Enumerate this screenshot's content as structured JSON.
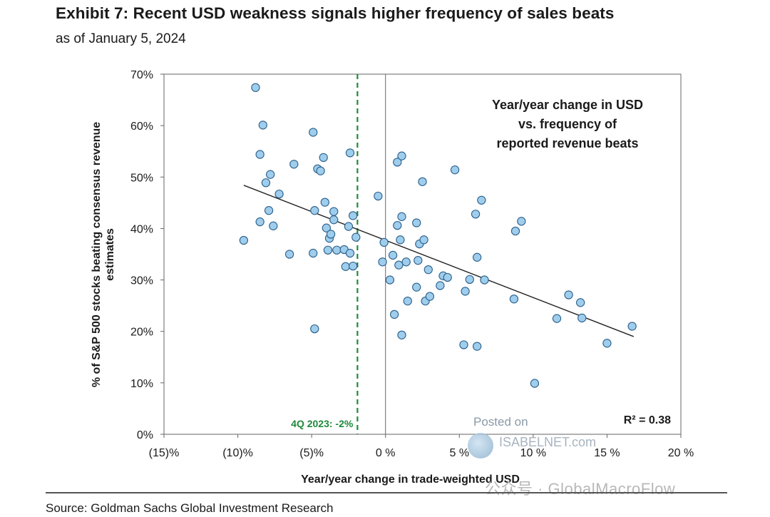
{
  "header": {
    "title": "Exhibit 7: Recent USD weakness signals higher frequency of sales beats",
    "subtitle": "as of January 5, 2024"
  },
  "footer": {
    "source": "Source: Goldman Sachs Global Investment Research"
  },
  "watermarks": {
    "posted_on": "Posted on",
    "site": "ISABELNET.com",
    "social": "公众号 · GlobalMacroFlow"
  },
  "chart_data": {
    "type": "scatter",
    "xlabel": "Year/year change in trade-weighted USD",
    "ylabel": "% of S&P 500 stocks beating consensus revenue estimates",
    "xlim": [
      -15,
      20
    ],
    "ylim": [
      0,
      70
    ],
    "x_ticks": [
      -15,
      -10,
      -5,
      0,
      5,
      10,
      15,
      20
    ],
    "x_tick_labels": [
      "(15)%",
      "(10)%",
      "(5)%",
      "0 %",
      "5 %",
      "10 %",
      "15 %",
      "20 %"
    ],
    "y_ticks": [
      0,
      10,
      20,
      30,
      40,
      50,
      60,
      70
    ],
    "y_tick_labels": [
      "0%",
      "10%",
      "20%",
      "30%",
      "40%",
      "50%",
      "60%",
      "70%"
    ],
    "grid": false,
    "annotation": "Year/year change in USD vs. frequency of reported revenue beats",
    "annotation_lines": [
      "Year/year change in USD",
      "vs. frequency of",
      "reported revenue beats"
    ],
    "r_squared_label": "R² = 0.38",
    "reference_line": {
      "x": -1.9,
      "label": "4Q 2023: -2%",
      "color": "#1e8a3c"
    },
    "trendline": {
      "x": [
        -9.6,
        16.8
      ],
      "y": [
        48.4,
        19.0
      ]
    },
    "marker_color": "#9fcdec",
    "marker_edge": "#2b5f8a",
    "points": [
      {
        "x": -9.6,
        "y": 37.7
      },
      {
        "x": -8.8,
        "y": 67.4
      },
      {
        "x": -8.5,
        "y": 54.4
      },
      {
        "x": -8.5,
        "y": 41.3
      },
      {
        "x": -8.3,
        "y": 60.1
      },
      {
        "x": -8.1,
        "y": 48.9
      },
      {
        "x": -7.9,
        "y": 43.5
      },
      {
        "x": -7.8,
        "y": 50.5
      },
      {
        "x": -7.6,
        "y": 40.5
      },
      {
        "x": -7.2,
        "y": 46.7
      },
      {
        "x": -6.5,
        "y": 35.0
      },
      {
        "x": -6.2,
        "y": 52.5
      },
      {
        "x": -4.9,
        "y": 58.7
      },
      {
        "x": -4.9,
        "y": 35.2
      },
      {
        "x": -4.8,
        "y": 43.5
      },
      {
        "x": -4.8,
        "y": 20.5
      },
      {
        "x": -4.6,
        "y": 51.6
      },
      {
        "x": -4.4,
        "y": 51.2
      },
      {
        "x": -4.2,
        "y": 53.8
      },
      {
        "x": -4.1,
        "y": 45.1
      },
      {
        "x": -4.0,
        "y": 40.1
      },
      {
        "x": -3.9,
        "y": 35.8
      },
      {
        "x": -3.8,
        "y": 38.1
      },
      {
        "x": -3.7,
        "y": 38.9
      },
      {
        "x": -3.5,
        "y": 43.3
      },
      {
        "x": -3.5,
        "y": 41.7
      },
      {
        "x": -3.3,
        "y": 35.8
      },
      {
        "x": -2.8,
        "y": 35.9
      },
      {
        "x": -2.7,
        "y": 32.6
      },
      {
        "x": -2.5,
        "y": 40.4
      },
      {
        "x": -2.4,
        "y": 54.7
      },
      {
        "x": -2.4,
        "y": 35.2
      },
      {
        "x": -2.2,
        "y": 32.7
      },
      {
        "x": -2.2,
        "y": 42.5
      },
      {
        "x": -2.0,
        "y": 38.3
      },
      {
        "x": -0.5,
        "y": 46.3
      },
      {
        "x": -0.2,
        "y": 33.5
      },
      {
        "x": -0.1,
        "y": 37.3
      },
      {
        "x": 0.3,
        "y": 30.0
      },
      {
        "x": 0.5,
        "y": 34.8
      },
      {
        "x": 0.6,
        "y": 23.3
      },
      {
        "x": 0.8,
        "y": 52.9
      },
      {
        "x": 0.8,
        "y": 40.6
      },
      {
        "x": 0.9,
        "y": 32.9
      },
      {
        "x": 1.0,
        "y": 37.8
      },
      {
        "x": 1.1,
        "y": 54.1
      },
      {
        "x": 1.1,
        "y": 42.3
      },
      {
        "x": 1.1,
        "y": 19.3
      },
      {
        "x": 1.4,
        "y": 33.5
      },
      {
        "x": 1.5,
        "y": 25.9
      },
      {
        "x": 2.1,
        "y": 28.6
      },
      {
        "x": 2.1,
        "y": 41.1
      },
      {
        "x": 2.2,
        "y": 33.8
      },
      {
        "x": 2.3,
        "y": 37.0
      },
      {
        "x": 2.5,
        "y": 49.1
      },
      {
        "x": 2.6,
        "y": 37.8
      },
      {
        "x": 2.7,
        "y": 25.9
      },
      {
        "x": 2.9,
        "y": 32.0
      },
      {
        "x": 3.0,
        "y": 26.8
      },
      {
        "x": 3.7,
        "y": 28.9
      },
      {
        "x": 3.9,
        "y": 30.8
      },
      {
        "x": 4.2,
        "y": 30.5
      },
      {
        "x": 4.7,
        "y": 51.4
      },
      {
        "x": 5.4,
        "y": 27.8
      },
      {
        "x": 5.3,
        "y": 17.4
      },
      {
        "x": 5.7,
        "y": 30.1
      },
      {
        "x": 6.1,
        "y": 42.8
      },
      {
        "x": 6.2,
        "y": 17.1
      },
      {
        "x": 6.2,
        "y": 34.4
      },
      {
        "x": 6.5,
        "y": 45.5
      },
      {
        "x": 6.7,
        "y": 30.0
      },
      {
        "x": 8.7,
        "y": 26.3
      },
      {
        "x": 8.8,
        "y": 39.5
      },
      {
        "x": 9.2,
        "y": 41.4
      },
      {
        "x": 10.1,
        "y": 9.9
      },
      {
        "x": 11.6,
        "y": 22.5
      },
      {
        "x": 12.4,
        "y": 27.1
      },
      {
        "x": 13.2,
        "y": 25.6
      },
      {
        "x": 13.3,
        "y": 22.6
      },
      {
        "x": 15.0,
        "y": 17.7
      },
      {
        "x": 16.7,
        "y": 21.0
      }
    ]
  }
}
